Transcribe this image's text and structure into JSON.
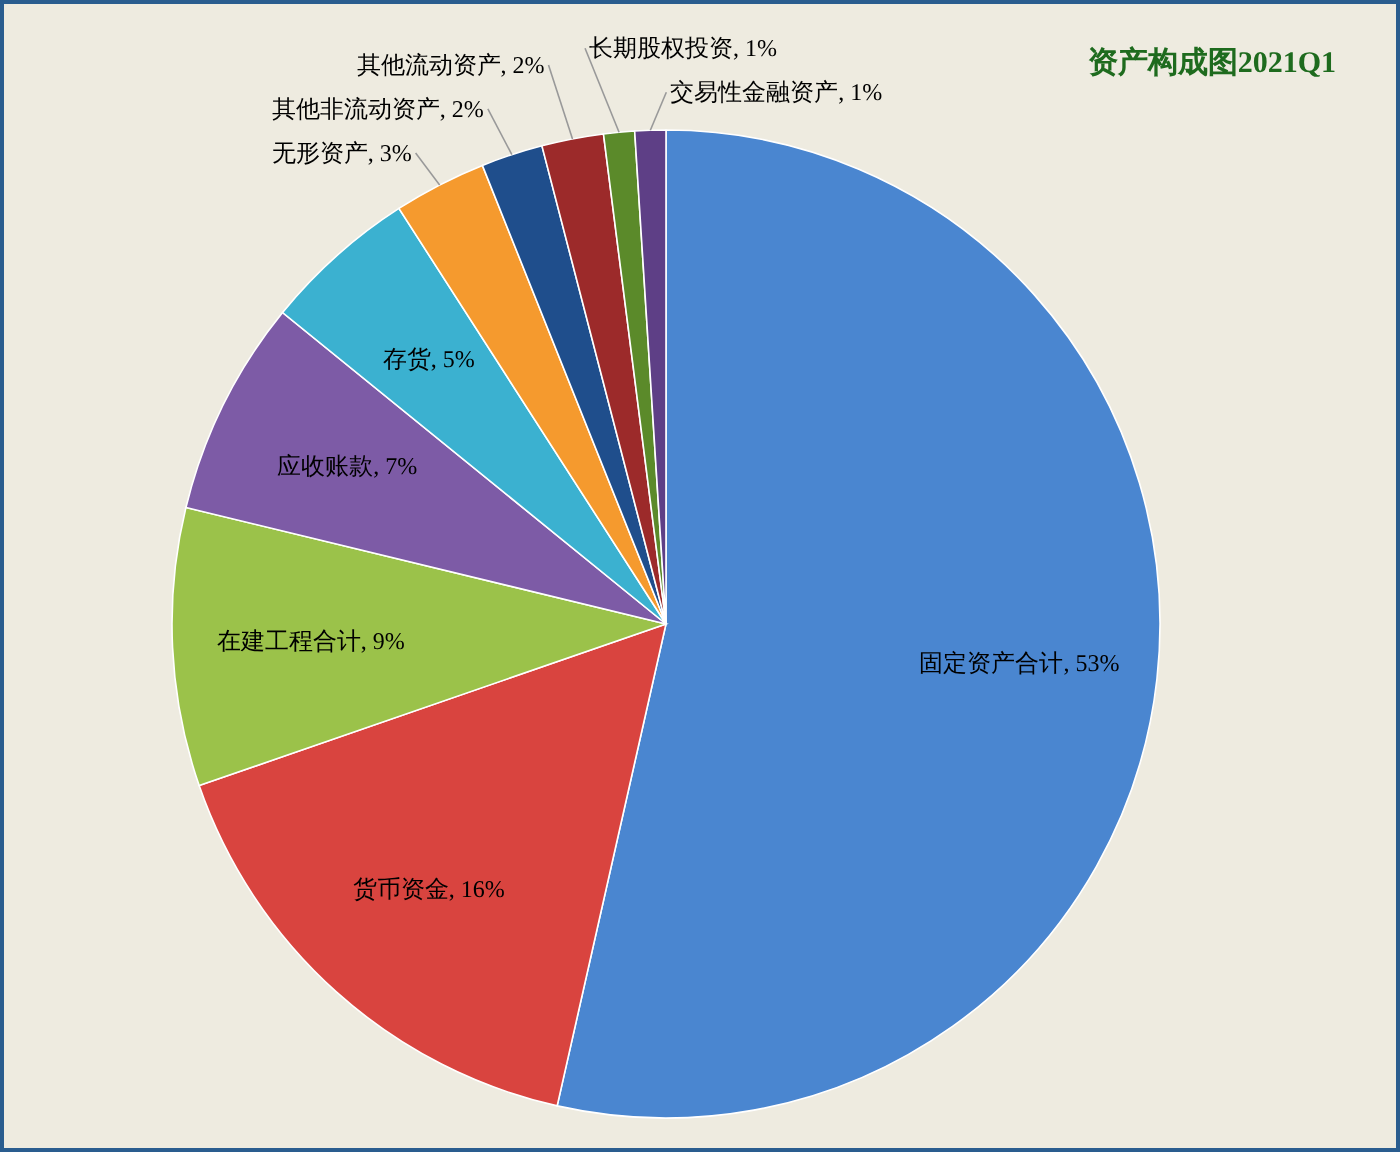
{
  "chart_data": {
    "type": "pie",
    "title": "资产构成图2021Q1",
    "categories": [
      "固定资产合计",
      "货币资金",
      "在建工程合计",
      "应收账款",
      "存货",
      "无形资产",
      "其他非流动资产",
      "其他流动资产",
      "长期股权投资",
      "交易性金融资产"
    ],
    "values": [
      53,
      16,
      9,
      7,
      5,
      3,
      2,
      2,
      1,
      1
    ],
    "value_labels": [
      "53%",
      "16%",
      "9%",
      "7%",
      "5%",
      "3%",
      "2%",
      "2%",
      "1%",
      "1%"
    ],
    "colors": [
      "#4a86d0",
      "#d9443f",
      "#9bc24a",
      "#7d5ba6",
      "#3bb1d0",
      "#f59a2e",
      "#1f4e8c",
      "#9c2a2a",
      "#5b8a2a",
      "#5e3f86"
    ]
  }
}
